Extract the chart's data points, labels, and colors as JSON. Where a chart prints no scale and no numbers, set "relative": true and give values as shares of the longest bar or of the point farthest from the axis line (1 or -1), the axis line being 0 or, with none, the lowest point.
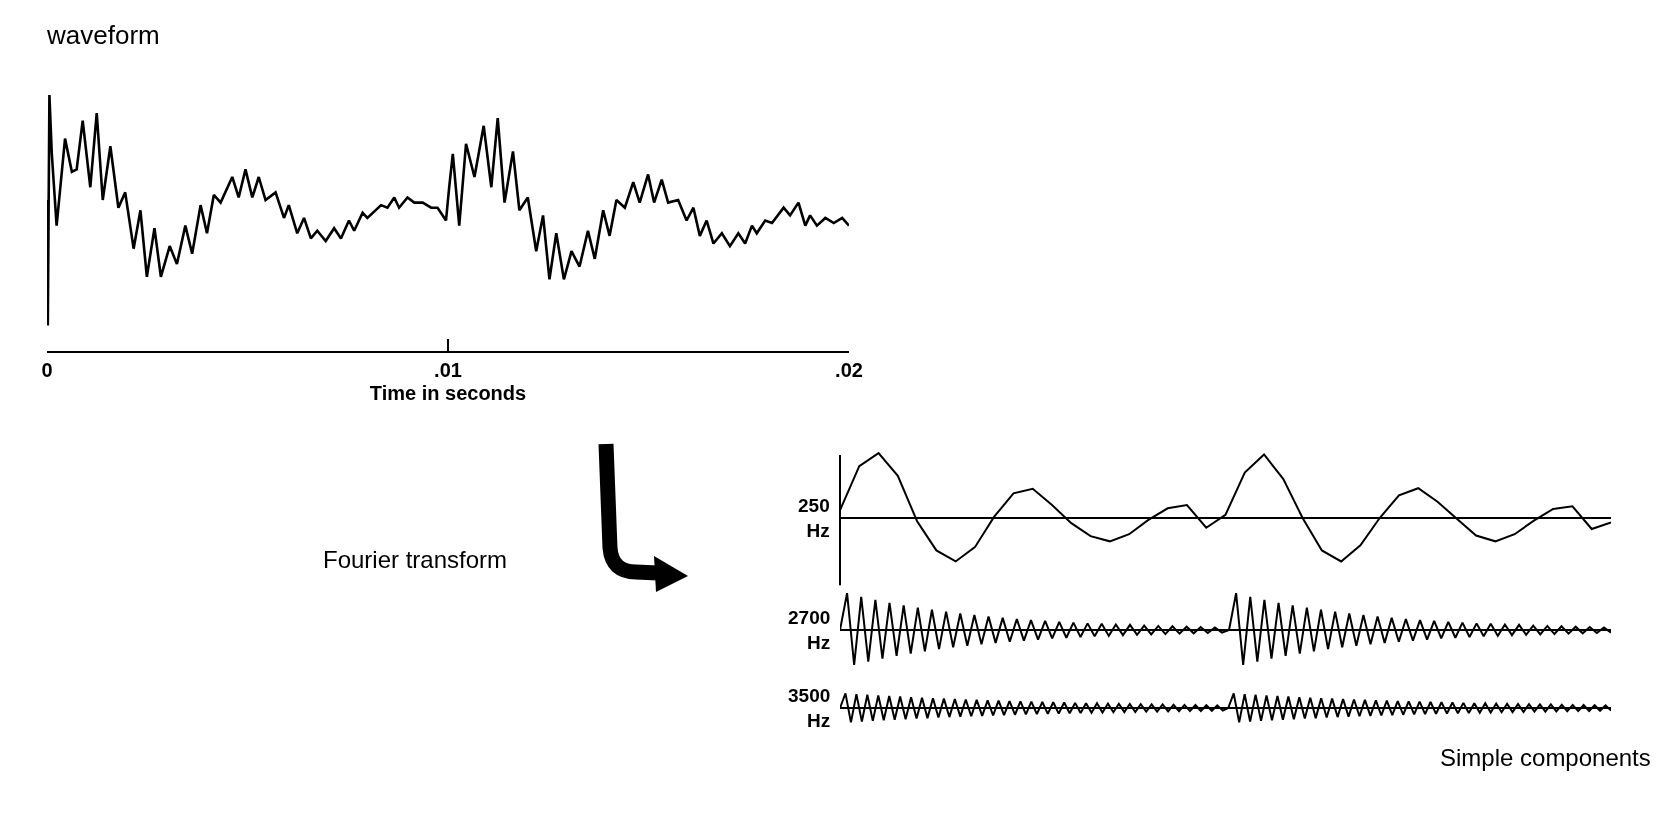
{
  "chart_data": [
    {
      "type": "line",
      "title": "waveform",
      "xlabel": "Time in seconds",
      "relative": true,
      "tick_labels": "x",
      "color": "#000000",
      "xlim": [
        0,
        0.02
      ],
      "xticks": [
        0,
        {
          "value": 0.01,
          "label": ".01"
        },
        {
          "value": 0.02,
          "label": ".02"
        }
      ],
      "x": [
        0,
        2e-05,
        6e-05,
        0.00012,
        0.00024,
        0.00045,
        0.00062,
        0.00074,
        0.00089,
        0.00108,
        0.00124,
        0.00139,
        0.00158,
        0.00178,
        0.00195,
        0.00216,
        0.00233,
        0.00249,
        0.00268,
        0.00284,
        0.00306,
        0.00324,
        0.00345,
        0.00362,
        0.00383,
        0.00399,
        0.00416,
        0.00433,
        0.00462,
        0.00478,
        0.00495,
        0.00512,
        0.00528,
        0.00545,
        0.0057,
        0.00591,
        0.00603,
        0.00624,
        0.00641,
        0.00658,
        0.00674,
        0.00695,
        0.00716,
        0.00733,
        0.00753,
        0.00766,
        0.00787,
        0.00799,
        0.00833,
        0.00849,
        0.00866,
        0.00878,
        0.00899,
        0.00916,
        0.00937,
        0.00958,
        0.00974,
        0.00995,
        0.01003,
        0.01012,
        0.01028,
        0.01045,
        0.01066,
        0.01089,
        0.01108,
        0.01124,
        0.01141,
        0.01162,
        0.01178,
        0.01199,
        0.0122,
        0.01237,
        0.01253,
        0.0127,
        0.01289,
        0.01308,
        0.01328,
        0.01349,
        0.01366,
        0.01387,
        0.01403,
        0.0142,
        0.01441,
        0.01462,
        0.01478,
        0.01499,
        0.01514,
        0.01533,
        0.01549,
        0.01574,
        0.01595,
        0.01612,
        0.01628,
        0.01645,
        0.01662,
        0.01683,
        0.01703,
        0.01724,
        0.01741,
        0.01758,
        0.0177,
        0.01791,
        0.01808,
        0.01837,
        0.01853,
        0.01874,
        0.01891,
        0.01903,
        0.0192,
        0.01941,
        0.01962,
        0.01983,
        0.02
      ],
      "values": [
        0.59,
        0.1,
        1.0,
        0.77,
        0.49,
        0.83,
        0.7,
        0.71,
        0.9,
        0.64,
        0.93,
        0.59,
        0.8,
        0.56,
        0.62,
        0.4,
        0.55,
        0.29,
        0.48,
        0.29,
        0.41,
        0.34,
        0.49,
        0.38,
        0.57,
        0.46,
        0.61,
        0.58,
        0.68,
        0.6,
        0.71,
        0.6,
        0.68,
        0.59,
        0.62,
        0.52,
        0.57,
        0.46,
        0.52,
        0.44,
        0.47,
        0.43,
        0.48,
        0.44,
        0.51,
        0.47,
        0.54,
        0.52,
        0.57,
        0.56,
        0.6,
        0.56,
        0.6,
        0.58,
        0.58,
        0.56,
        0.56,
        0.51,
        0.64,
        0.77,
        0.49,
        0.81,
        0.68,
        0.88,
        0.64,
        0.91,
        0.58,
        0.78,
        0.55,
        0.6,
        0.39,
        0.53,
        0.28,
        0.46,
        0.28,
        0.39,
        0.33,
        0.47,
        0.36,
        0.55,
        0.45,
        0.59,
        0.56,
        0.66,
        0.58,
        0.69,
        0.58,
        0.67,
        0.58,
        0.59,
        0.51,
        0.56,
        0.45,
        0.51,
        0.42,
        0.46,
        0.41,
        0.46,
        0.42,
        0.49,
        0.46,
        0.51,
        0.5,
        0.56,
        0.53,
        0.58,
        0.49,
        0.53,
        0.49,
        0.52,
        0.5,
        0.52,
        0.49
      ]
    },
    {
      "type": "line",
      "ylabel": "250 Hz",
      "relative": true,
      "tick_labels": false,
      "color": "#000000",
      "annotations": [
        "Fourier transform"
      ],
      "ref_lines": [
        {
          "axis": "y",
          "value": 0
        }
      ],
      "categories": [
        null,
        null,
        null,
        null,
        null,
        null,
        null,
        null,
        null,
        null,
        null,
        null,
        null,
        null,
        null,
        null,
        null,
        null,
        null,
        null,
        null,
        null,
        null,
        null,
        null,
        null,
        null,
        null,
        null,
        null,
        null,
        null,
        null,
        null,
        null,
        null,
        null,
        null,
        null,
        null,
        null
      ],
      "values": [
        0.12,
        0.8,
        1.0,
        0.65,
        -0.05,
        -0.5,
        -0.67,
        -0.45,
        0.02,
        0.38,
        0.45,
        0.2,
        -0.08,
        -0.28,
        -0.36,
        -0.25,
        -0.03,
        0.15,
        0.2,
        -0.15,
        0.05,
        0.7,
        0.98,
        0.6,
        0,
        -0.5,
        -0.67,
        -0.42,
        0,
        0.35,
        0.46,
        0.25,
        -0.01,
        -0.27,
        -0.36,
        -0.25,
        -0.04,
        0.14,
        0.18,
        -0.17,
        -0.07
      ]
    },
    {
      "type": "line",
      "ylabel": "2700 Hz",
      "relative": true,
      "tick_labels": false,
      "color": "#000000",
      "ref_lines": [
        {
          "axis": "y",
          "value": 0
        }
      ],
      "categories": [
        null,
        null,
        null,
        null,
        null,
        null,
        null,
        null,
        null,
        null,
        null,
        null,
        null,
        null,
        null,
        null,
        null,
        null,
        null,
        null,
        null,
        null,
        null,
        null,
        null,
        null,
        null,
        null,
        null,
        null,
        null,
        null,
        null,
        null,
        null,
        null,
        null,
        null,
        null,
        null,
        null,
        null,
        null,
        null,
        null,
        null,
        null,
        null,
        null,
        null,
        null,
        null,
        null,
        null,
        null,
        null,
        null,
        null,
        null,
        null,
        null,
        null,
        null,
        null,
        null,
        null,
        null,
        null,
        null,
        null,
        null,
        null,
        null,
        null,
        null,
        null,
        null,
        null,
        null,
        null,
        null,
        null,
        null,
        null,
        null,
        null,
        null,
        null,
        null,
        null,
        null,
        null,
        null,
        null,
        null,
        null,
        null,
        null,
        null,
        null,
        null,
        null,
        null,
        null,
        null,
        null,
        null,
        null,
        null,
        null
      ],
      "values": [
        0,
        1.0,
        -0.95,
        0.9,
        -0.86,
        0.82,
        -0.78,
        0.74,
        -0.7,
        0.67,
        -0.64,
        0.61,
        -0.58,
        0.55,
        -0.52,
        0.5,
        -0.47,
        0.45,
        -0.43,
        0.41,
        -0.39,
        0.37,
        -0.35,
        0.33,
        -0.32,
        0.3,
        -0.29,
        0.27,
        -0.26,
        0.25,
        -0.23,
        0.22,
        -0.21,
        0.2,
        -0.19,
        0.18,
        -0.17,
        0.17,
        -0.16,
        0.15,
        -0.14,
        0.14,
        -0.13,
        0.12,
        -0.12,
        0.11,
        -0.11,
        0.1,
        -0.1,
        0.09,
        -0.09,
        0.08,
        -0.08,
        0.07,
        -0.07,
        0,
        1.0,
        -0.95,
        0.9,
        -0.86,
        0.82,
        -0.78,
        0.74,
        -0.7,
        0.67,
        -0.64,
        0.61,
        -0.58,
        0.55,
        -0.52,
        0.5,
        -0.47,
        0.45,
        -0.43,
        0.41,
        -0.39,
        0.37,
        -0.35,
        0.33,
        -0.32,
        0.3,
        -0.29,
        0.27,
        -0.26,
        0.25,
        -0.23,
        0.22,
        -0.21,
        0.2,
        -0.19,
        0.18,
        -0.17,
        0.17,
        -0.16,
        0.15,
        -0.14,
        0.14,
        -0.13,
        0.12,
        -0.12,
        0.11,
        -0.11,
        0.1,
        -0.1,
        0.09,
        -0.09,
        0.08,
        -0.08,
        0.07,
        -0.07
      ]
    },
    {
      "type": "line",
      "ylabel": "3500 Hz",
      "relative": true,
      "tick_labels": false,
      "color": "#000000",
      "ref_lines": [
        {
          "axis": "y",
          "value": 0
        }
      ],
      "annotations": [
        "Simple components"
      ],
      "categories": [
        null,
        null,
        null,
        null,
        null,
        null,
        null,
        null,
        null,
        null,
        null,
        null,
        null,
        null,
        null,
        null,
        null,
        null,
        null,
        null,
        null,
        null,
        null,
        null,
        null,
        null,
        null,
        null,
        null,
        null,
        null,
        null,
        null,
        null,
        null,
        null,
        null,
        null,
        null,
        null,
        null,
        null,
        null,
        null,
        null,
        null,
        null,
        null,
        null,
        null,
        null,
        null,
        null,
        null,
        null,
        null,
        null,
        null,
        null,
        null,
        null,
        null,
        null,
        null,
        null,
        null,
        null,
        null,
        null,
        null,
        null,
        null,
        null,
        null,
        null,
        null,
        null,
        null,
        null,
        null,
        null,
        null,
        null,
        null,
        null,
        null,
        null,
        null,
        null,
        null,
        null,
        null,
        null,
        null,
        null,
        null,
        null,
        null,
        null,
        null,
        null,
        null,
        null,
        null,
        null,
        null,
        null,
        null,
        null,
        null,
        null,
        null,
        null,
        null,
        null,
        null,
        null,
        null,
        null,
        null,
        null,
        null,
        null,
        null,
        null,
        null,
        null,
        null,
        null,
        null,
        null,
        null,
        null,
        null,
        null,
        null,
        null,
        null,
        null,
        null,
        null,
        null
      ],
      "values": [
        0,
        1.0,
        -0.98,
        0.95,
        -0.93,
        0.9,
        -0.88,
        0.86,
        -0.84,
        0.82,
        -0.8,
        0.78,
        -0.76,
        0.74,
        -0.72,
        0.7,
        -0.69,
        0.67,
        -0.65,
        0.64,
        -0.62,
        0.61,
        -0.59,
        0.58,
        -0.56,
        0.55,
        -0.54,
        0.52,
        -0.51,
        0.5,
        -0.48,
        0.47,
        -0.46,
        0.45,
        -0.44,
        0.43,
        -0.42,
        0.41,
        -0.4,
        0.39,
        -0.38,
        0.37,
        -0.36,
        0.35,
        -0.34,
        0.33,
        -0.32,
        0.32,
        -0.31,
        0.3,
        -0.29,
        0.29,
        -0.28,
        0.27,
        -0.27,
        0.26,
        -0.25,
        0.25,
        -0.24,
        0.24,
        -0.23,
        0.22,
        -0.22,
        0.21,
        -0.21,
        0.2,
        -0.2,
        0.19,
        -0.19,
        0.18,
        -0.18,
        0,
        1.0,
        -0.98,
        0.95,
        -0.93,
        0.9,
        -0.88,
        0.86,
        -0.84,
        0.82,
        -0.8,
        0.78,
        -0.76,
        0.74,
        -0.72,
        0.7,
        -0.69,
        0.67,
        -0.65,
        0.64,
        -0.62,
        0.61,
        -0.59,
        0.58,
        -0.56,
        0.55,
        -0.54,
        0.52,
        -0.51,
        0.5,
        -0.48,
        0.47,
        -0.46,
        0.45,
        -0.44,
        0.43,
        -0.42,
        0.41,
        -0.4,
        0.39,
        -0.38,
        0.37,
        -0.36,
        0.35,
        -0.34,
        0.33,
        -0.32,
        0.32,
        -0.31,
        0.3,
        -0.29,
        0.29,
        -0.28,
        0.27,
        -0.27,
        0.26,
        -0.25,
        0.25,
        -0.24,
        0.24,
        -0.23,
        0.22,
        -0.22,
        0.21,
        -0.21,
        0.2,
        -0.2,
        0.19,
        -0.19,
        0.18,
        -0.18
      ]
    }
  ]
}
